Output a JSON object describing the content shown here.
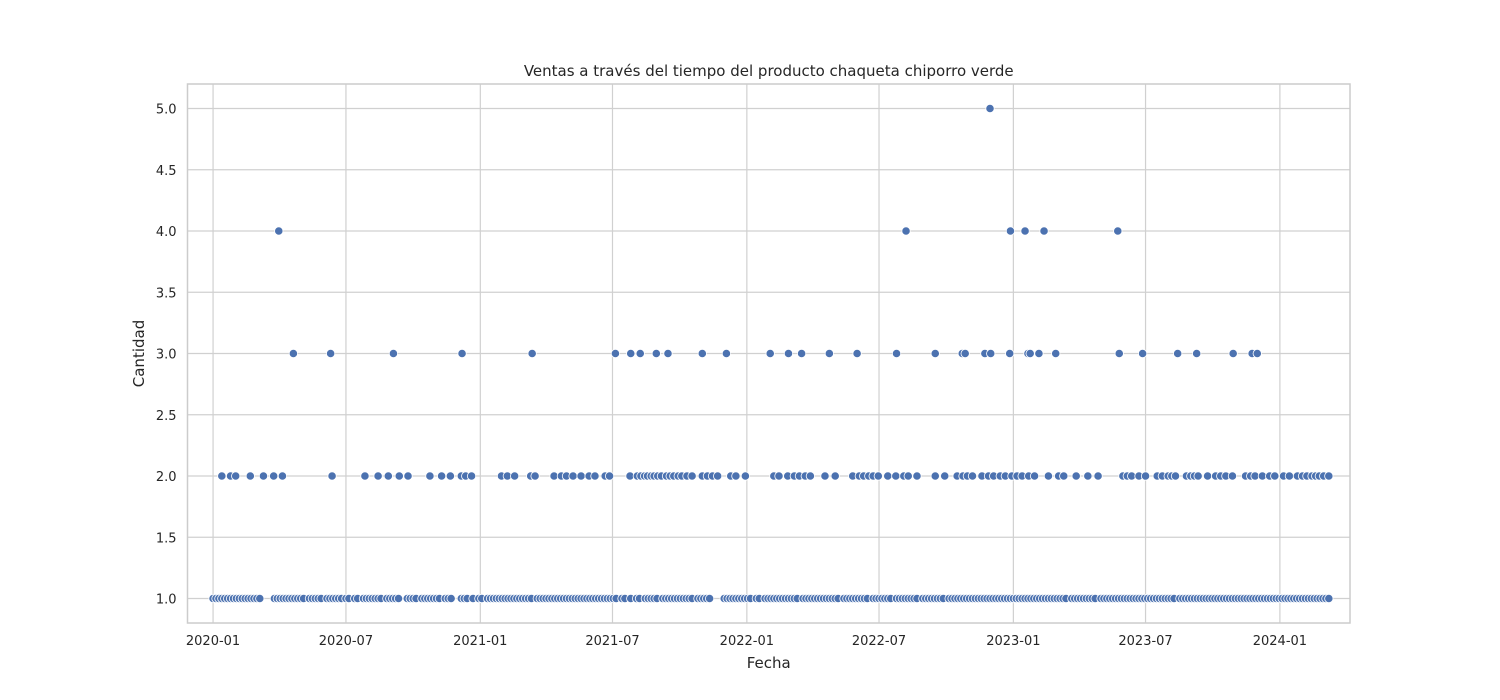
{
  "chart_data": {
    "type": "scatter",
    "title": "Ventas a través del tiempo del producto chaqueta chiporro verde",
    "xlabel": "Fecha",
    "ylabel": "Cantidad",
    "xlim": [
      "2019-11-27",
      "2024-04-06"
    ],
    "ylim": [
      0.8,
      5.2
    ],
    "x_ticks": [
      {
        "date": "2020-01-01",
        "label": "2020-01"
      },
      {
        "date": "2020-07-01",
        "label": "2020-07"
      },
      {
        "date": "2021-01-01",
        "label": "2021-01"
      },
      {
        "date": "2021-07-01",
        "label": "2021-07"
      },
      {
        "date": "2022-01-01",
        "label": "2022-01"
      },
      {
        "date": "2022-07-01",
        "label": "2022-07"
      },
      {
        "date": "2023-01-01",
        "label": "2023-01"
      },
      {
        "date": "2023-07-01",
        "label": "2023-07"
      },
      {
        "date": "2024-01-01",
        "label": "2024-01"
      }
    ],
    "y_ticks": [
      {
        "value": 1.0,
        "label": "1.0"
      },
      {
        "value": 1.5,
        "label": "1.5"
      },
      {
        "value": 2.0,
        "label": "2.0"
      },
      {
        "value": 2.5,
        "label": "2.5"
      },
      {
        "value": 3.0,
        "label": "3.0"
      },
      {
        "value": 3.5,
        "label": "3.5"
      },
      {
        "value": 4.0,
        "label": "4.0"
      },
      {
        "value": 4.5,
        "label": "4.5"
      },
      {
        "value": 5.0,
        "label": "5.0"
      }
    ],
    "grid": true,
    "marker_color": "#4c72b0",
    "series": [
      {
        "y": 1,
        "x": [
          "2020-01-01",
          "2020-01-05",
          "2020-01-09",
          "2020-01-13",
          "2020-01-17",
          "2020-01-21",
          "2020-01-25",
          "2020-01-29",
          "2020-02-02",
          "2020-02-06",
          "2020-02-10",
          "2020-02-14",
          "2020-02-18",
          "2020-02-22",
          "2020-02-26",
          "2020-03-01",
          "2020-03-05",
          "2020-03-25",
          "2020-03-29",
          "2020-04-02",
          "2020-04-06",
          "2020-04-10",
          "2020-04-14",
          "2020-04-18",
          "2020-04-22",
          "2020-04-26",
          "2020-04-30",
          "2020-05-04",
          "2020-05-12",
          "2020-05-16",
          "2020-05-20",
          "2020-05-24",
          "2020-05-28",
          "2020-06-05",
          "2020-06-09",
          "2020-06-13",
          "2020-06-17",
          "2020-06-21",
          "2020-06-25",
          "2020-07-01",
          "2020-07-05",
          "2020-07-13",
          "2020-07-17",
          "2020-07-25",
          "2020-07-29",
          "2020-08-02",
          "2020-08-06",
          "2020-08-10",
          "2020-08-14",
          "2020-08-18",
          "2020-08-26",
          "2020-08-30",
          "2020-09-03",
          "2020-09-07",
          "2020-09-11",
          "2020-09-23",
          "2020-09-27",
          "2020-10-01",
          "2020-10-05",
          "2020-10-13",
          "2020-10-17",
          "2020-10-21",
          "2020-10-25",
          "2020-10-29",
          "2020-11-02",
          "2020-11-06",
          "2020-11-14",
          "2020-11-18",
          "2020-11-22",
          "2020-12-06",
          "2020-12-10",
          "2020-12-14",
          "2020-12-22",
          "2020-12-30",
          "2021-01-03",
          "2021-01-11",
          "2021-01-15",
          "2021-01-19",
          "2021-01-23",
          "2021-01-27",
          "2021-01-31",
          "2021-02-04",
          "2021-02-08",
          "2021-02-12",
          "2021-02-16",
          "2021-02-20",
          "2021-02-24",
          "2021-02-28",
          "2021-03-04",
          "2021-03-08",
          "2021-03-12",
          "2021-03-20",
          "2021-03-24",
          "2021-03-28",
          "2021-04-01",
          "2021-04-05",
          "2021-04-09",
          "2021-04-13",
          "2021-04-17",
          "2021-04-21",
          "2021-04-25",
          "2021-04-29",
          "2021-05-03",
          "2021-05-07",
          "2021-05-11",
          "2021-05-15",
          "2021-05-19",
          "2021-05-23",
          "2021-05-27",
          "2021-05-31",
          "2021-06-04",
          "2021-06-08",
          "2021-06-12",
          "2021-06-16",
          "2021-06-20",
          "2021-06-24",
          "2021-06-28",
          "2021-07-02",
          "2021-07-06",
          "2021-07-14",
          "2021-07-18",
          "2021-07-26",
          "2021-08-03",
          "2021-08-07",
          "2021-08-15",
          "2021-08-19",
          "2021-08-23",
          "2021-08-27",
          "2021-08-31",
          "2021-09-08",
          "2021-09-12",
          "2021-09-16",
          "2021-09-20",
          "2021-09-24",
          "2021-09-28",
          "2021-10-02",
          "2021-10-06",
          "2021-10-10",
          "2021-10-14",
          "2021-10-18",
          "2021-10-26",
          "2021-10-30",
          "2021-11-03",
          "2021-11-07",
          "2021-11-11",
          "2021-12-01",
          "2021-12-05",
          "2021-12-09",
          "2021-12-13",
          "2021-12-17",
          "2021-12-21",
          "2021-12-25",
          "2021-12-29",
          "2022-01-02",
          "2022-01-06",
          "2022-01-14",
          "2022-01-18",
          "2022-01-26",
          "2022-01-30",
          "2022-02-03",
          "2022-02-07",
          "2022-02-11",
          "2022-02-15",
          "2022-02-19",
          "2022-02-23",
          "2022-02-27",
          "2022-03-03",
          "2022-03-07",
          "2022-03-11",
          "2022-03-19",
          "2022-03-23",
          "2022-03-27",
          "2022-03-31",
          "2022-04-04",
          "2022-04-08",
          "2022-04-12",
          "2022-04-16",
          "2022-04-20",
          "2022-04-24",
          "2022-04-28",
          "2022-05-02",
          "2022-05-06",
          "2022-05-14",
          "2022-05-18",
          "2022-05-22",
          "2022-05-26",
          "2022-05-30",
          "2022-06-03",
          "2022-06-07",
          "2022-06-11",
          "2022-06-15",
          "2022-06-23",
          "2022-06-27",
          "2022-07-01",
          "2022-07-05",
          "2022-07-09",
          "2022-07-13",
          "2022-07-17",
          "2022-07-25",
          "2022-07-29",
          "2022-08-02",
          "2022-08-06",
          "2022-08-10",
          "2022-08-14",
          "2022-08-18",
          "2022-08-22",
          "2022-08-30",
          "2022-09-03",
          "2022-09-07",
          "2022-09-11",
          "2022-09-15",
          "2022-09-19",
          "2022-09-23",
          "2022-09-27",
          "2022-10-05",
          "2022-10-09",
          "2022-10-13",
          "2022-10-17",
          "2022-10-21",
          "2022-10-25",
          "2022-10-29",
          "2022-11-02",
          "2022-11-06",
          "2022-11-10",
          "2022-11-14",
          "2022-11-18",
          "2022-11-22",
          "2022-11-26",
          "2022-11-30",
          "2022-12-04",
          "2022-12-08",
          "2022-12-12",
          "2022-12-16",
          "2022-12-20",
          "2022-12-24",
          "2022-12-28",
          "2023-01-01",
          "2023-01-05",
          "2023-01-09",
          "2023-01-13",
          "2023-01-17",
          "2023-01-21",
          "2023-01-25",
          "2023-01-29",
          "2023-02-02",
          "2023-02-06",
          "2023-02-10",
          "2023-02-14",
          "2023-02-18",
          "2023-02-22",
          "2023-02-26",
          "2023-03-02",
          "2023-03-06",
          "2023-03-10",
          "2023-03-14",
          "2023-03-22",
          "2023-03-26",
          "2023-03-30",
          "2023-04-03",
          "2023-04-07",
          "2023-04-11",
          "2023-04-15",
          "2023-04-19",
          "2023-04-23",
          "2023-05-01",
          "2023-05-05",
          "2023-05-09",
          "2023-05-13",
          "2023-05-17",
          "2023-05-21",
          "2023-05-25",
          "2023-05-29",
          "2023-06-02",
          "2023-06-06",
          "2023-06-10",
          "2023-06-14",
          "2023-06-18",
          "2023-06-22",
          "2023-06-26",
          "2023-06-30",
          "2023-07-04",
          "2023-07-08",
          "2023-07-12",
          "2023-07-16",
          "2023-07-20",
          "2023-07-24",
          "2023-07-28",
          "2023-08-01",
          "2023-08-05",
          "2023-08-09",
          "2023-08-17",
          "2023-08-21",
          "2023-08-25",
          "2023-08-29",
          "2023-09-02",
          "2023-09-06",
          "2023-09-10",
          "2023-09-14",
          "2023-09-18",
          "2023-09-22",
          "2023-09-26",
          "2023-09-30",
          "2023-10-04",
          "2023-10-08",
          "2023-10-12",
          "2023-10-16",
          "2023-10-20",
          "2023-10-24",
          "2023-10-28",
          "2023-11-01",
          "2023-11-05",
          "2023-11-09",
          "2023-11-13",
          "2023-11-17",
          "2023-11-21",
          "2023-11-25",
          "2023-11-29",
          "2023-12-03",
          "2023-12-07",
          "2023-12-11",
          "2023-12-15",
          "2023-12-19",
          "2023-12-23",
          "2023-12-27",
          "2023-12-31",
          "2024-01-04",
          "2024-01-08",
          "2024-01-12",
          "2024-01-16",
          "2024-01-20",
          "2024-01-24",
          "2024-01-28",
          "2024-02-01",
          "2024-02-05",
          "2024-02-09",
          "2024-02-13",
          "2024-02-17",
          "2024-02-21",
          "2024-02-25",
          "2024-02-29",
          "2024-03-04",
          "2024-03-08"
        ]
      },
      {
        "y": 2,
        "x": [
          "2020-01-13",
          "2020-01-25",
          "2020-02-01",
          "2020-02-21",
          "2020-03-10",
          "2020-03-24",
          "2020-04-05",
          "2020-06-12",
          "2020-07-27",
          "2020-08-14",
          "2020-08-28",
          "2020-09-12",
          "2020-09-24",
          "2020-10-24",
          "2020-11-09",
          "2020-11-21",
          "2020-12-06",
          "2020-12-12",
          "2020-12-20",
          "2021-01-30",
          "2021-02-07",
          "2021-02-17",
          "2021-03-11",
          "2021-03-17",
          "2021-04-12",
          "2021-04-22",
          "2021-04-29",
          "2021-05-08",
          "2021-05-19",
          "2021-05-30",
          "2021-06-07",
          "2021-06-21",
          "2021-06-27",
          "2021-07-25",
          "2021-08-04",
          "2021-08-09",
          "2021-08-14",
          "2021-08-18",
          "2021-08-23",
          "2021-08-27",
          "2021-09-01",
          "2021-09-06",
          "2021-09-13",
          "2021-09-18",
          "2021-09-23",
          "2021-09-29",
          "2021-10-04",
          "2021-10-11",
          "2021-10-18",
          "2021-11-01",
          "2021-11-08",
          "2021-11-15",
          "2021-11-22",
          "2021-12-10",
          "2021-12-17",
          "2021-12-30",
          "2022-02-07",
          "2022-02-14",
          "2022-02-26",
          "2022-03-07",
          "2022-03-14",
          "2022-03-22",
          "2022-03-29",
          "2022-04-18",
          "2022-05-02",
          "2022-05-26",
          "2022-06-04",
          "2022-06-10",
          "2022-06-17",
          "2022-06-23",
          "2022-06-30",
          "2022-07-13",
          "2022-07-24",
          "2022-08-04",
          "2022-08-10",
          "2022-08-22",
          "2022-09-16",
          "2022-09-29",
          "2022-10-16",
          "2022-10-24",
          "2022-10-30",
          "2022-11-06",
          "2022-11-19",
          "2022-11-28",
          "2022-12-05",
          "2022-12-14",
          "2022-12-21",
          "2022-12-30",
          "2023-01-06",
          "2023-01-13",
          "2023-01-22",
          "2023-01-30",
          "2023-02-18",
          "2023-03-04",
          "2023-03-11",
          "2023-03-28",
          "2023-04-13",
          "2023-04-27",
          "2023-05-31",
          "2023-06-06",
          "2023-06-12",
          "2023-06-22",
          "2023-07-01",
          "2023-07-17",
          "2023-07-24",
          "2023-08-01",
          "2023-08-06",
          "2023-08-11",
          "2023-08-26",
          "2023-09-01",
          "2023-09-06",
          "2023-09-11",
          "2023-09-24",
          "2023-10-05",
          "2023-10-12",
          "2023-10-19",
          "2023-10-28",
          "2023-11-15",
          "2023-11-22",
          "2023-11-28",
          "2023-12-08",
          "2023-12-18",
          "2023-12-25",
          "2024-01-06",
          "2024-01-14",
          "2024-01-25",
          "2024-02-01",
          "2024-02-07",
          "2024-02-14",
          "2024-02-19",
          "2024-02-24",
          "2024-03-01",
          "2024-03-08"
        ]
      },
      {
        "y": 3,
        "x": [
          "2020-04-20",
          "2020-06-10",
          "2020-09-04",
          "2020-12-07",
          "2021-03-13",
          "2021-07-05",
          "2021-07-26",
          "2021-08-08",
          "2021-08-30",
          "2021-09-15",
          "2021-11-01",
          "2021-12-04",
          "2022-02-02",
          "2022-02-27",
          "2022-03-17",
          "2022-04-24",
          "2022-06-01",
          "2022-07-25",
          "2022-09-16",
          "2022-10-23",
          "2022-10-27",
          "2022-11-23",
          "2022-12-01",
          "2022-12-27",
          "2023-01-21",
          "2023-01-24",
          "2023-02-05",
          "2023-02-28",
          "2023-05-26",
          "2023-06-27",
          "2023-08-14",
          "2023-09-09",
          "2023-10-29",
          "2023-11-24",
          "2023-12-01"
        ]
      },
      {
        "y": 4,
        "x": [
          "2020-03-31",
          "2022-08-07",
          "2022-12-28",
          "2023-01-17",
          "2023-02-12",
          "2023-05-24"
        ]
      },
      {
        "y": 5,
        "x": [
          "2022-11-30"
        ]
      }
    ]
  }
}
